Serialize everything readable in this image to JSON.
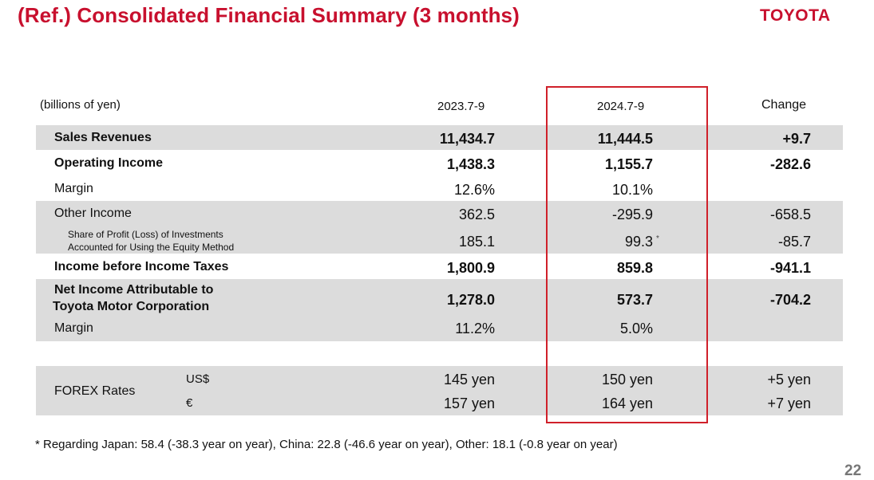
{
  "header": {
    "title": "(Ref.) Consolidated Financial Summary (3 months)",
    "brand": "TOYOTA"
  },
  "table": {
    "unit_label": "(billions of yen)",
    "columns": [
      "2023.7-9",
      "2024.7-9",
      "Change"
    ],
    "rows": [
      {
        "label": "Sales Revenues",
        "v2023": "11,434.7",
        "v2024": "11,444.5",
        "change": "+9.7"
      },
      {
        "label": "Operating Income",
        "v2023": "1,438.3",
        "v2024": "1,155.7",
        "change": "-282.6"
      },
      {
        "label": "Margin",
        "v2023": "12.6%",
        "v2024": "10.1%",
        "change": ""
      },
      {
        "label": "Other Income",
        "v2023": "362.5",
        "v2024": "-295.9",
        "change": "-658.5"
      },
      {
        "label_line1": "Share of Profit (Loss) of Investments",
        "label_line2": "Accounted for Using the Equity Method",
        "v2023": "185.1",
        "v2024": "99.3",
        "mark": "*",
        "change": "-85.7"
      },
      {
        "label": "Income before Income Taxes",
        "v2023": "1,800.9",
        "v2024": "859.8",
        "change": "-941.1"
      },
      {
        "label_line1": "Net Income Attributable to",
        "label_line2": "Toyota Motor Corporation",
        "v2023": "1,278.0",
        "v2024": "573.7",
        "change": "-704.2"
      },
      {
        "label": "Margin",
        "v2023": "11.2%",
        "v2024": "5.0%",
        "change": ""
      }
    ],
    "forex": {
      "label": "FOREX Rates",
      "usd": {
        "currency": "US$",
        "v2023": "145 yen",
        "v2024": "150 yen",
        "change": "+5 yen"
      },
      "eur": {
        "currency": "€",
        "v2023": "157 yen",
        "v2024": "164 yen",
        "change": "+7 yen"
      }
    },
    "highlight_color": "#d0202a",
    "row_band_color": "#dcdcdc"
  },
  "footnote": "* Regarding Japan: 58.4 (-38.3 year on year), China: 22.8 (-46.6 year on year), Other: 18.1 (-0.8 year on year)",
  "page_number": "22"
}
